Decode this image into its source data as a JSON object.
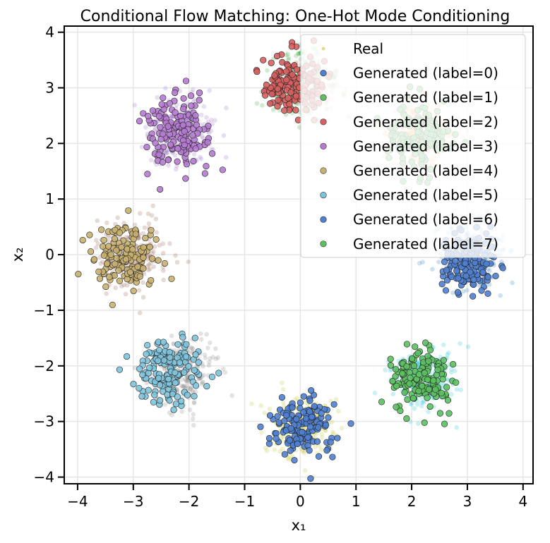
{
  "chart_data": {
    "type": "scatter",
    "title": "Conditional Flow Matching: One-Hot Mode Conditioning",
    "xlabel": "x₁",
    "ylabel": "x₂",
    "xlim": [
      -4.24,
      4.18
    ],
    "ylim": [
      -4.12,
      4.11
    ],
    "xticks": [
      -4,
      -3,
      -2,
      -1,
      0,
      1,
      2,
      3,
      4
    ],
    "yticks": [
      -4,
      -3,
      -2,
      -1,
      0,
      1,
      2,
      3,
      4
    ],
    "xtick_labels": [
      "−4",
      "−3",
      "−2",
      "−1",
      "0",
      "1",
      "2",
      "3",
      "4"
    ],
    "ytick_labels": [
      "−4",
      "−3",
      "−2",
      "−1",
      "0",
      "1",
      "2",
      "3",
      "4"
    ],
    "grid": true,
    "legend_position": "top-right",
    "real_clusters": [
      {
        "center": [
          0.0,
          3.05
        ],
        "std": 0.3,
        "count": 220,
        "color": "#2ca02c"
      },
      {
        "center": [
          0.15,
          3.0
        ],
        "std": 0.25,
        "count": 120,
        "color": "#e8a0a0"
      },
      {
        "center": [
          2.15,
          2.15
        ],
        "std": 0.3,
        "count": 220,
        "color": "#ff7f0e"
      },
      {
        "center": [
          3.1,
          0.0
        ],
        "std": 0.3,
        "count": 220,
        "color": "#1f77b4"
      },
      {
        "center": [
          2.2,
          -2.2
        ],
        "std": 0.3,
        "count": 220,
        "color": "#17becf"
      },
      {
        "center": [
          0.0,
          -3.1
        ],
        "std": 0.3,
        "count": 220,
        "color": "#bcbd22"
      },
      {
        "center": [
          -2.1,
          -2.1
        ],
        "std": 0.3,
        "count": 220,
        "color": "#7f7f7f"
      },
      {
        "center": [
          -3.05,
          0.0
        ],
        "std": 0.3,
        "count": 220,
        "color": "#8c564b"
      },
      {
        "center": [
          -2.15,
          2.2
        ],
        "std": 0.3,
        "count": 220,
        "color": "#9467bd"
      }
    ],
    "series": [
      {
        "name": "Generated (label=0)",
        "color": "#4f7fd0",
        "center": [
          0.0,
          -3.1
        ],
        "std": 0.28,
        "count": 150
      },
      {
        "name": "Generated (label=1)",
        "color": "#5cc060",
        "center": [
          2.1,
          2.15
        ],
        "std": 0.28,
        "count": 150
      },
      {
        "name": "Generated (label=2)",
        "color": "#d65f5f",
        "center": [
          -0.15,
          3.05
        ],
        "std": 0.28,
        "count": 150
      },
      {
        "name": "Generated (label=3)",
        "color": "#b57bd0",
        "center": [
          -2.2,
          2.2
        ],
        "std": 0.3,
        "count": 150
      },
      {
        "name": "Generated (label=4)",
        "color": "#c8b070",
        "center": [
          -3.15,
          -0.05
        ],
        "std": 0.3,
        "count": 150
      },
      {
        "name": "Generated (label=5)",
        "color": "#7ec3dc",
        "center": [
          -2.35,
          -2.1
        ],
        "std": 0.3,
        "count": 150
      },
      {
        "name": "Generated (label=6)",
        "color": "#4f7fd0",
        "center": [
          3.05,
          -0.15
        ],
        "std": 0.25,
        "count": 150
      },
      {
        "name": "Generated (label=7)",
        "color": "#5cc060",
        "center": [
          2.15,
          -2.25
        ],
        "std": 0.28,
        "count": 150
      }
    ],
    "legend": {
      "real_label": "Real",
      "real_color": "#dddd88"
    }
  }
}
